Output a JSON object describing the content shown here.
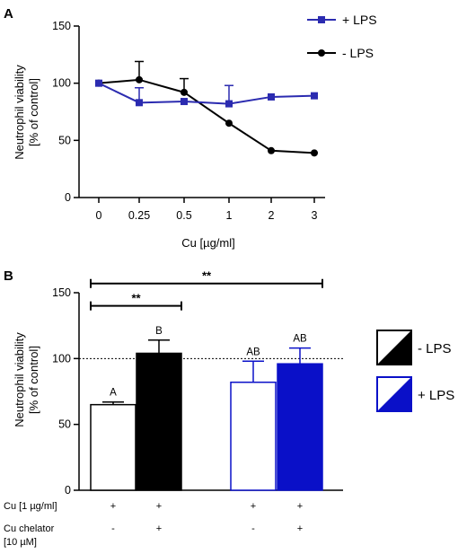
{
  "chart_data": [
    {
      "panel": "A",
      "type": "line",
      "title": "",
      "xlabel": "Cu [µg/ml]",
      "ylabel_lines": [
        "Neutrophil viability",
        "[% of control]"
      ],
      "categories": [
        "0",
        "0.25",
        "0.5",
        "1",
        "2",
        "3"
      ],
      "ylim": [
        0,
        150
      ],
      "yticks": [
        "0",
        "50",
        "100",
        "150"
      ],
      "grid": false,
      "legend_position": "top-right",
      "series": [
        {
          "name": "+ LPS",
          "color": "#2b2bb0",
          "marker": "square",
          "values": [
            100,
            83,
            84,
            82,
            88,
            89
          ],
          "errors": [
            0,
            13,
            0,
            16,
            0,
            0
          ]
        },
        {
          "name": "- LPS",
          "color": "#000000",
          "marker": "circle",
          "values": [
            100,
            103,
            92,
            65,
            41,
            39
          ],
          "errors": [
            0,
            16,
            12,
            0,
            0,
            0
          ]
        }
      ]
    },
    {
      "panel": "B",
      "type": "bar",
      "title": "",
      "ylabel_lines": [
        "Neutrophil viability",
        "[% of control]"
      ],
      "ylim": [
        0,
        150
      ],
      "yticks": [
        "0",
        "50",
        "100",
        "150"
      ],
      "reference_line": 100,
      "grid": false,
      "legend_position": "right",
      "legend": [
        {
          "name": "-  LPS",
          "color": "#000000"
        },
        {
          "name": "+ LPS",
          "color": "#0a10c8"
        }
      ],
      "bars": [
        {
          "value": 65,
          "error": 2,
          "fill": "#ffffff",
          "stroke": "#000000",
          "letter": "A"
        },
        {
          "value": 104,
          "error": 10,
          "fill": "#000000",
          "stroke": "#000000",
          "letter": "B"
        },
        {
          "value": 82,
          "error": 16,
          "fill": "#ffffff",
          "stroke": "#0a10c8",
          "letter": "AB"
        },
        {
          "value": 96,
          "error": 12,
          "fill": "#0a10c8",
          "stroke": "#0a10c8",
          "letter": "AB"
        }
      ],
      "significance": [
        {
          "from_bar": 0,
          "to_bar": 1,
          "y": 140,
          "label": "**"
        },
        {
          "from_bar": 0,
          "to_bar": 3,
          "y": 157,
          "label": "**"
        }
      ],
      "conditions": [
        {
          "label_lines": [
            "Cu  [1 µg/ml]"
          ],
          "marks": [
            "+",
            "+",
            "+",
            "+"
          ]
        },
        {
          "label_lines": [
            "Cu chelator",
            "[10 µM]"
          ],
          "marks": [
            "-",
            "+",
            "-",
            "+"
          ]
        }
      ]
    }
  ]
}
